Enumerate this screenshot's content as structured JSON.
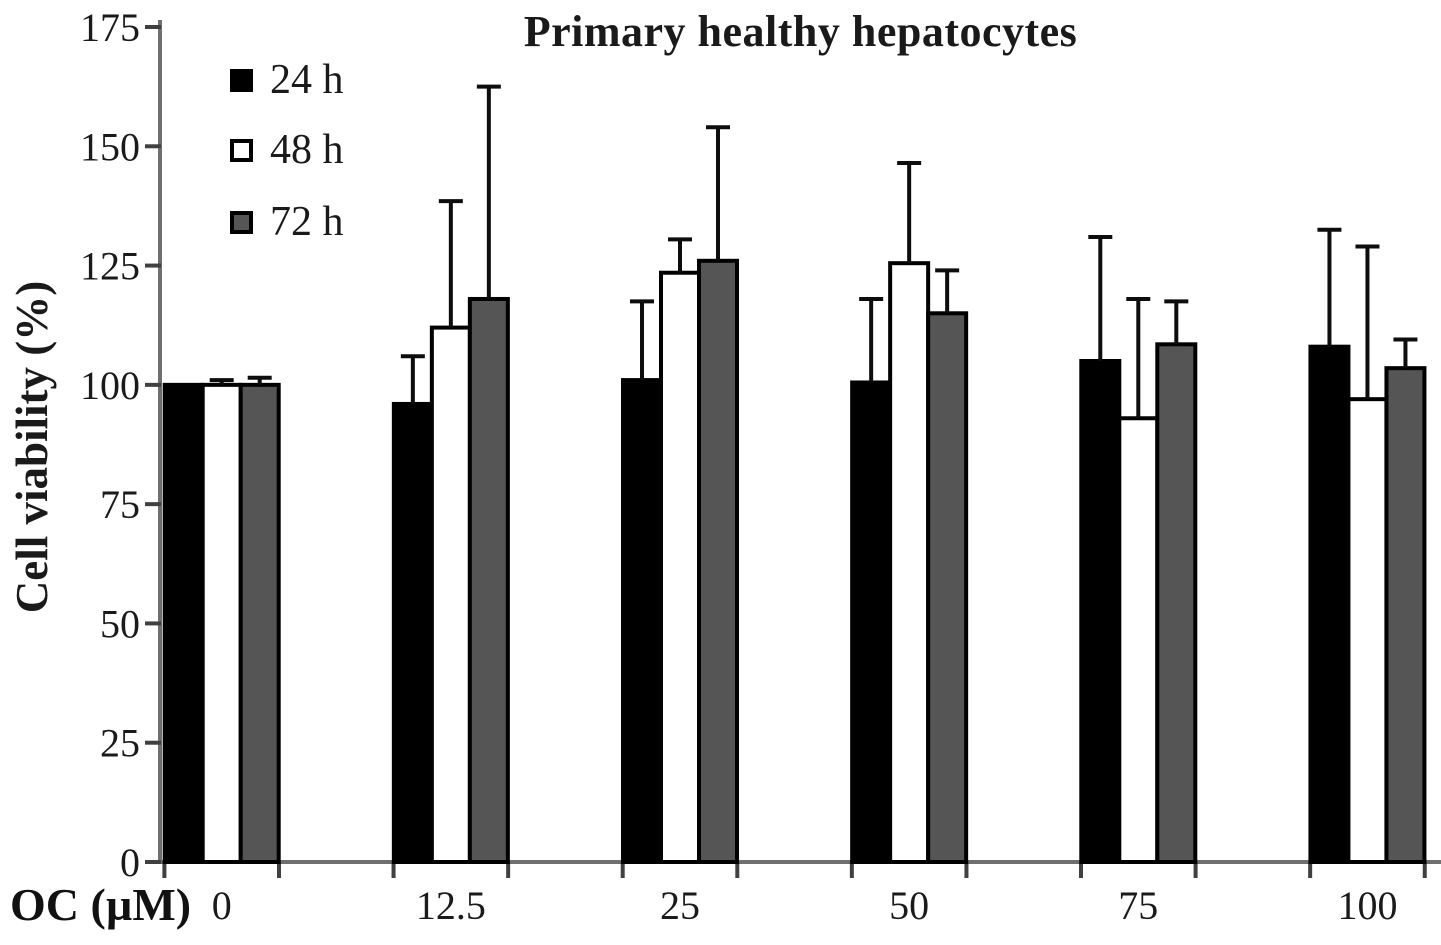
{
  "chart_data": {
    "type": "bar",
    "title": "Primary healthy hepatocytes",
    "xlabel": "OC (µM)",
    "ylabel": "Cell viability (%)",
    "ylim": [
      0,
      175
    ],
    "yticks": [
      0,
      25,
      50,
      75,
      100,
      125,
      150,
      175
    ],
    "categories": [
      "0",
      "12.5",
      "25",
      "50",
      "75",
      "100"
    ],
    "grid": false,
    "legend_position": "top-left",
    "error_bars": "upper",
    "axis_color": "#6f6f6f",
    "tick_color": "#404040",
    "bar_outline_color": "#000000",
    "series": [
      {
        "name": "24 h",
        "color": "#000000",
        "values": [
          100,
          96,
          101,
          100.5,
          105,
          108
        ],
        "errors": [
          0,
          10,
          16.5,
          17.5,
          26,
          24.5
        ]
      },
      {
        "name": "48 h",
        "color": "#ffffff",
        "values": [
          100,
          112,
          123.5,
          125.5,
          93,
          97
        ],
        "errors": [
          1,
          26.5,
          7,
          21,
          25,
          32
        ]
      },
      {
        "name": "72 h",
        "color": "#555555",
        "values": [
          100,
          118,
          126,
          115,
          108.5,
          103.5
        ],
        "errors": [
          1.5,
          44.5,
          28,
          9,
          9,
          6
        ]
      }
    ]
  }
}
